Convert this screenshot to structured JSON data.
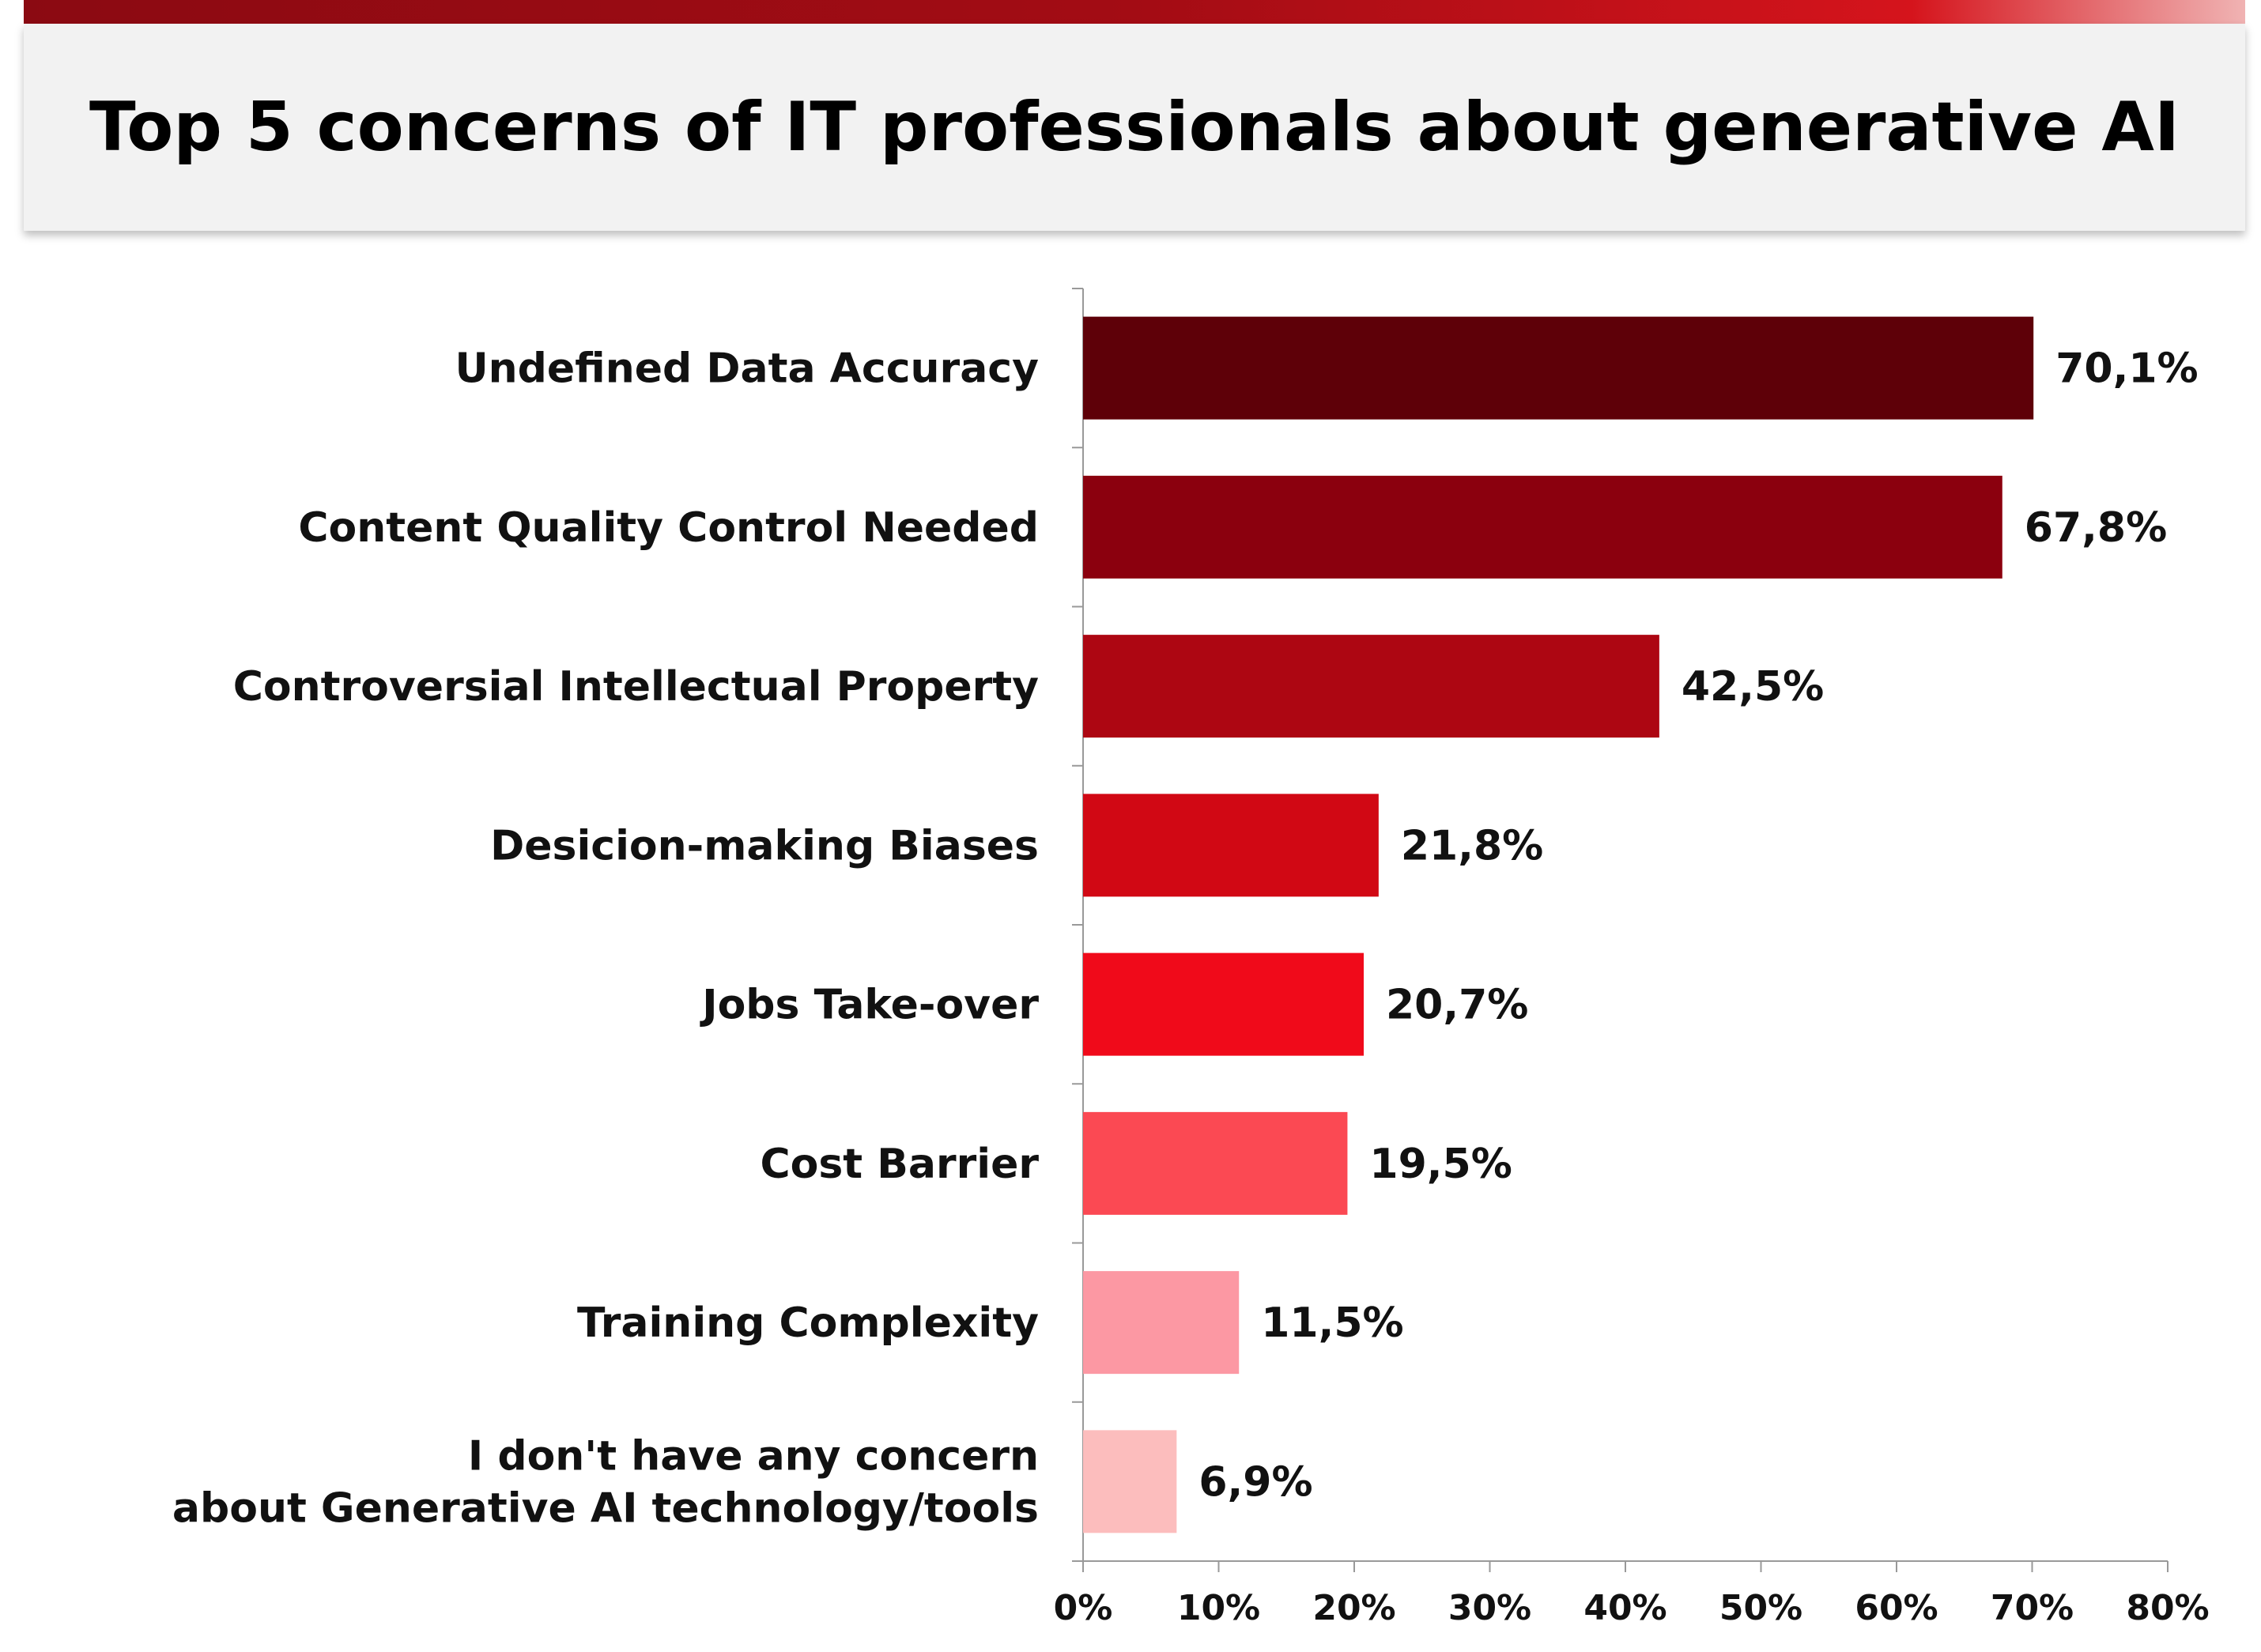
{
  "title": "Top 5 concerns of IT professionals about generative AI",
  "chart_data": {
    "type": "bar",
    "orientation": "horizontal",
    "categories": [
      [
        "Undefined Data Accuracy"
      ],
      [
        "Content Quality Control Needed"
      ],
      [
        "Controversial Intellectual Property"
      ],
      [
        "Desicion-making Biases"
      ],
      [
        "Jobs Take-over"
      ],
      [
        "Cost Barrier"
      ],
      [
        "Training Complexity"
      ],
      [
        "I don't have any concern",
        "about Generative AI technology/tools"
      ]
    ],
    "values": [
      70.1,
      67.8,
      42.5,
      21.8,
      20.7,
      19.5,
      11.5,
      6.9
    ],
    "value_labels": [
      "70,1%",
      "67,8%",
      "42,5%",
      "21,8%",
      "20,7%",
      "19,5%",
      "11,5%",
      "6,9%"
    ],
    "bar_colors": [
      "#5e0008",
      "#8b000e",
      "#ad0612",
      "#d10814",
      "#f00a1a",
      "#fb4953",
      "#fc98a3",
      "#fcbdbd"
    ],
    "xlim": [
      0,
      80
    ],
    "x_ticks": [
      0,
      10,
      20,
      30,
      40,
      50,
      60,
      70,
      80
    ],
    "x_tick_labels": [
      "0%",
      "10%",
      "20%",
      "30%",
      "40%",
      "50%",
      "60%",
      "70%",
      "80%"
    ],
    "grid": false,
    "legend": "none"
  }
}
